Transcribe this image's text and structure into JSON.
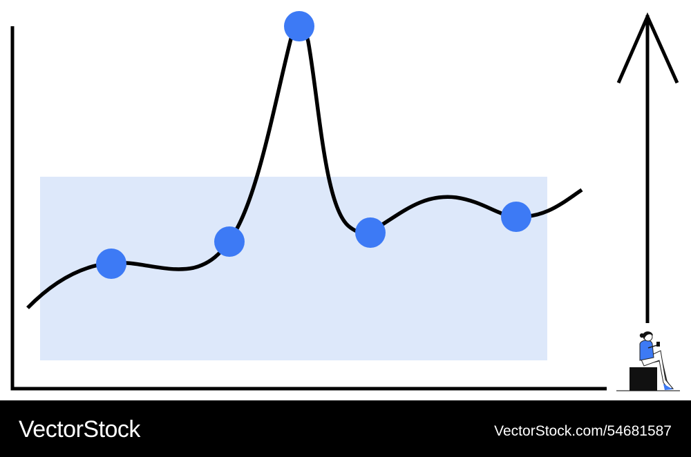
{
  "colors": {
    "background": "#ffffff",
    "band": "#dde8fa",
    "line": "#000000",
    "dot": "#3d7af5",
    "footer": "#000000",
    "footer_text": "#ffffff"
  },
  "illustration": {
    "elements": [
      "left-axis",
      "bottom-axis",
      "highlight-band",
      "trend-curve",
      "data-dots",
      "up-arrow",
      "sitting-person"
    ],
    "dot_count": 5
  },
  "footer": {
    "logo_text": "VectorStock",
    "image_id": "VectorStock.com/54681587"
  }
}
